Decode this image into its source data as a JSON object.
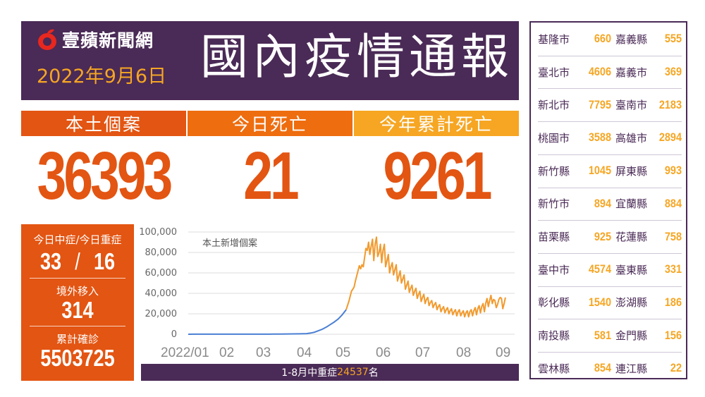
{
  "header": {
    "logo_text": "壹蘋新聞網",
    "date": "2022年9月6日",
    "title": "國內疫情通報"
  },
  "stats": [
    {
      "label": "本土個案",
      "value": "36393"
    },
    {
      "label": "今日死亡",
      "value": "21"
    },
    {
      "label": "今年累計死亡",
      "value": "9261"
    }
  ],
  "left_box": {
    "severe_label": "今日中症/今日重症",
    "moderate": "33",
    "separator": "/",
    "critical": "16",
    "imported_label": "境外移入",
    "imported": "314",
    "cumulative_label": "累計確診",
    "cumulative": "5503725"
  },
  "footer": {
    "prefix": "1-8月中重症",
    "number": "24537",
    "suffix": "名"
  },
  "colors": {
    "purple": "#4a2a56",
    "orange_dark": "#e35512",
    "orange_mid": "#ee6d0f",
    "orange_light": "#f6a623",
    "line": "#f29a2e",
    "line_early": "#4a7fd4"
  },
  "chart_data": {
    "type": "line",
    "title": "本土新增個案",
    "y_ticks": [
      "100,000",
      "80,000",
      "60,000",
      "40,000",
      "20,000",
      "0"
    ],
    "ylim": [
      0,
      100000
    ],
    "x_ticks": [
      "2022/01",
      "02",
      "03",
      "04",
      "05",
      "06",
      "07",
      "08",
      "09"
    ],
    "series": [
      {
        "points": [
          [
            0,
            30
          ],
          [
            5,
            60
          ],
          [
            10,
            40
          ],
          [
            15,
            60
          ],
          [
            20,
            50
          ],
          [
            25,
            45
          ],
          [
            30,
            60
          ],
          [
            35,
            40
          ],
          [
            40,
            50
          ],
          [
            45,
            60
          ],
          [
            50,
            45
          ],
          [
            55,
            50
          ],
          [
            59,
            80
          ],
          [
            62,
            100
          ],
          [
            65,
            150
          ],
          [
            70,
            200
          ],
          [
            75,
            260
          ],
          [
            80,
            330
          ],
          [
            85,
            400
          ],
          [
            90,
            600
          ],
          [
            93,
            1200
          ],
          [
            96,
            2000
          ],
          [
            99,
            3500
          ],
          [
            102,
            5000
          ],
          [
            105,
            7000
          ],
          [
            108,
            9500
          ],
          [
            111,
            12000
          ],
          [
            114,
            15000
          ],
          [
            117,
            19000
          ],
          [
            120,
            24000
          ]
        ]
      },
      {
        "points": [
          [
            120,
            24000
          ],
          [
            122,
            32000
          ],
          [
            124,
            42000
          ],
          [
            126,
            46000
          ],
          [
            127,
            52000
          ],
          [
            129,
            62000
          ],
          [
            130,
            67000
          ],
          [
            131,
            64000
          ],
          [
            132,
            68000
          ],
          [
            133,
            66000
          ],
          [
            135,
            84000
          ],
          [
            136,
            82000
          ],
          [
            137,
            90000
          ],
          [
            138,
            78000
          ],
          [
            139,
            86000
          ],
          [
            140,
            93000
          ],
          [
            141,
            72000
          ],
          [
            142,
            88000
          ],
          [
            143,
            95000
          ],
          [
            144,
            76000
          ],
          [
            145,
            80000
          ],
          [
            146,
            88000
          ],
          [
            147,
            70000
          ],
          [
            148,
            82000
          ],
          [
            149,
            88000
          ],
          [
            150,
            66000
          ],
          [
            151,
            72000
          ],
          [
            152,
            78000
          ],
          [
            153,
            60000
          ],
          [
            154,
            66000
          ],
          [
            155,
            70000
          ],
          [
            156,
            58000
          ],
          [
            157,
            63000
          ],
          [
            158,
            68000
          ],
          [
            159,
            52000
          ],
          [
            160,
            57000
          ],
          [
            161,
            62000
          ],
          [
            162,
            50000
          ],
          [
            163,
            54000
          ],
          [
            164,
            58000
          ],
          [
            165,
            44000
          ],
          [
            166,
            48000
          ],
          [
            167,
            52000
          ],
          [
            168,
            41000
          ],
          [
            169,
            45000
          ],
          [
            170,
            48000
          ],
          [
            171,
            38000
          ],
          [
            172,
            42000
          ],
          [
            173,
            45000
          ],
          [
            174,
            35000
          ],
          [
            175,
            39000
          ],
          [
            176,
            42000
          ],
          [
            177,
            32000
          ],
          [
            178,
            36000
          ],
          [
            179,
            39000
          ],
          [
            180,
            30000
          ],
          [
            181,
            34000
          ],
          [
            182,
            36000
          ],
          [
            183,
            28000
          ],
          [
            184,
            31000
          ],
          [
            185,
            33000
          ],
          [
            186,
            26000
          ],
          [
            187,
            29000
          ],
          [
            188,
            31000
          ],
          [
            189,
            24000
          ],
          [
            190,
            27000
          ],
          [
            191,
            29000
          ],
          [
            192,
            22000
          ],
          [
            193,
            25000
          ],
          [
            194,
            27000
          ],
          [
            195,
            21000
          ],
          [
            196,
            24000
          ],
          [
            197,
            26000
          ],
          [
            198,
            20000
          ],
          [
            199,
            23000
          ],
          [
            200,
            25000
          ],
          [
            201,
            19000
          ],
          [
            202,
            22000
          ],
          [
            203,
            24000
          ],
          [
            204,
            18000
          ],
          [
            205,
            22000
          ],
          [
            206,
            24000
          ],
          [
            207,
            18000
          ],
          [
            208,
            21000
          ],
          [
            209,
            23000
          ],
          [
            210,
            17000
          ],
          [
            211,
            21000
          ],
          [
            212,
            23000
          ],
          [
            213,
            17000
          ],
          [
            214,
            22000
          ],
          [
            215,
            24000
          ],
          [
            216,
            18000
          ],
          [
            217,
            23000
          ],
          [
            218,
            26000
          ],
          [
            219,
            19000
          ],
          [
            220,
            25000
          ],
          [
            221,
            28000
          ],
          [
            222,
            21000
          ],
          [
            223,
            27000
          ],
          [
            224,
            30000
          ],
          [
            225,
            22000
          ],
          [
            226,
            30000
          ],
          [
            227,
            35000
          ],
          [
            228,
            27000
          ],
          [
            229,
            33000
          ],
          [
            230,
            38000
          ],
          [
            231,
            30000
          ],
          [
            232,
            34000
          ],
          [
            233,
            33000
          ],
          [
            234,
            26000
          ],
          [
            235,
            29000
          ],
          [
            236,
            34000
          ],
          [
            237,
            36000
          ],
          [
            238,
            35000
          ],
          [
            239,
            25000
          ],
          [
            240,
            30000
          ],
          [
            241,
            36000
          ]
        ]
      }
    ],
    "xlim": [
      0,
      248
    ],
    "grid": true
  },
  "cities": [
    [
      "基隆市",
      "660",
      "嘉義縣",
      "555"
    ],
    [
      "臺北市",
      "4606",
      "嘉義市",
      "369"
    ],
    [
      "新北市",
      "7795",
      "臺南市",
      "2183"
    ],
    [
      "桃園市",
      "3588",
      "高雄市",
      "2894"
    ],
    [
      "新竹縣",
      "1045",
      "屏東縣",
      "993"
    ],
    [
      "新竹市",
      "894",
      "宜蘭縣",
      "884"
    ],
    [
      "苗栗縣",
      "925",
      "花蓮縣",
      "758"
    ],
    [
      "臺中市",
      "4574",
      "臺東縣",
      "331"
    ],
    [
      "彰化縣",
      "1540",
      "澎湖縣",
      "186"
    ],
    [
      "南投縣",
      "581",
      "金門縣",
      "156"
    ],
    [
      "雲林縣",
      "854",
      "連江縣",
      "22"
    ]
  ]
}
